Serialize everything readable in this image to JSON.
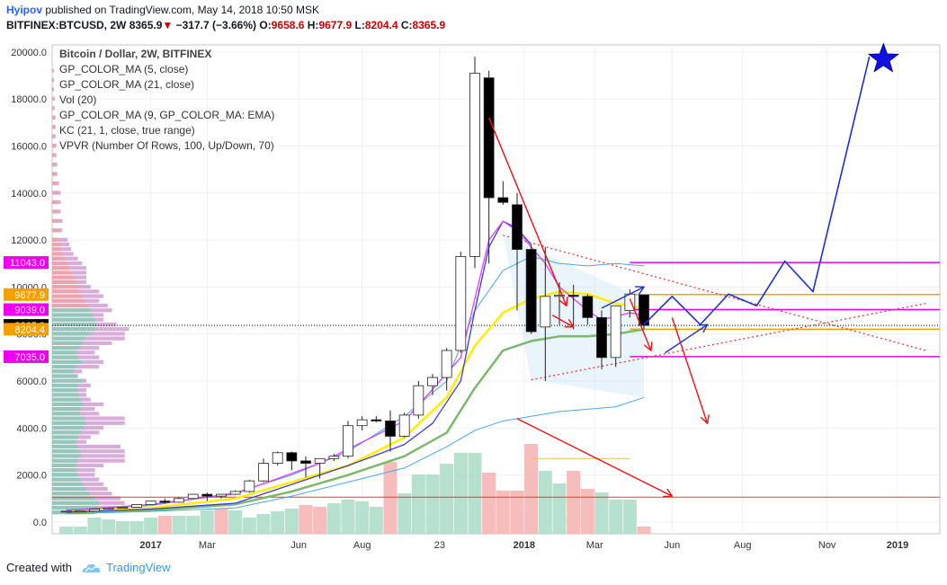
{
  "header": {
    "user": "Hyipov",
    "published_text": "published on TradingView.com, May 14, 2018 10:50 MSK",
    "symbol": "BITFINEX:BTCUSD, 2W",
    "last": "8365.9",
    "change": "−317.7 (−3.66%)",
    "o_label": "O:",
    "o_value": "9658.6",
    "h_label": "H:",
    "h_value": "9677.9",
    "l_label": "L:",
    "l_value": "8204.4",
    "c_label": "C:",
    "c_value": "8365.9"
  },
  "footer": {
    "created_with": "Created with",
    "brand": "TradingView"
  },
  "colors": {
    "up": "#ffffff",
    "down": "#000000",
    "wick": "#222222",
    "ma5": "#e040fb",
    "ma21": "#3d3ddb",
    "ema9": "#ffee00",
    "ma21b": "#7cb96b",
    "kc": "#4aa6e8",
    "vol_up": "#a8dcc5",
    "vol_down": "#f6b0b0",
    "red_arrow": "#ee1111",
    "blue_arrow": "#1c2ed8",
    "magenta": "#ee00ee",
    "orange": "#f5a000"
  },
  "chart_data": {
    "type": "candlestick",
    "title": "Bitcoin / Dollar, 2W, BITFINEX",
    "indicators": [
      "GP_COLOR_MA (5, close)",
      "GP_COLOR_MA (21, close)",
      "Vol (20)",
      "GP_COLOR_MA (9, GP_COLOR_MA: EMA)",
      "KC (21, 1, close, true range)",
      "VPVR (Number Of Rows, 100, Up/Down, 70)"
    ],
    "y_axis": {
      "ticks": [
        "0.0",
        "2000.0",
        "4000.0",
        "6000.0",
        "8000.0",
        "10000.0",
        "12000.0",
        "14000.0",
        "16000.0",
        "18000.0",
        "20000.0"
      ],
      "ylim": [
        -500,
        20300
      ]
    },
    "x_axis": {
      "ticks": [
        {
          "label": "2017",
          "i": 6
        },
        {
          "label": "Mar",
          "i": 10
        },
        {
          "label": "Jun",
          "i": 16.5
        },
        {
          "label": "Aug",
          "i": 21
        },
        {
          "label": "23",
          "i": 26.5
        },
        {
          "label": "2018",
          "i": 32.5
        },
        {
          "label": "Mar",
          "i": 37.5
        },
        {
          "label": "Jun",
          "i": 43
        },
        {
          "label": "Aug",
          "i": 48
        },
        {
          "label": "Nov",
          "i": 54
        },
        {
          "label": "2019",
          "i": 59
        }
      ],
      "xlim": [
        -1,
        62
      ]
    },
    "price_labels": [
      {
        "value": "11043.0",
        "y": 11043,
        "color": "#ee00ee"
      },
      {
        "value": "9677.9",
        "y": 9677.9,
        "color": "#f5a000"
      },
      {
        "value": "9039.0",
        "y": 9039,
        "color": "#ee00ee"
      },
      {
        "value": "8365.9",
        "y": 8365.9,
        "color": "#000000"
      },
      {
        "value": "8204.4",
        "y": 8204.4,
        "color": "#f5a000"
      },
      {
        "value": "7035.0",
        "y": 7035,
        "color": "#ee00ee"
      }
    ],
    "candles": [
      [
        0,
        430,
        460,
        440,
        460
      ],
      [
        1,
        460,
        470,
        450,
        465
      ],
      [
        2,
        465,
        560,
        460,
        550
      ],
      [
        3,
        550,
        620,
        540,
        600
      ],
      [
        4,
        600,
        650,
        590,
        630
      ],
      [
        5,
        630,
        760,
        620,
        740
      ],
      [
        6,
        740,
        900,
        730,
        890
      ],
      [
        7,
        890,
        1000,
        780,
        840
      ],
      [
        8,
        840,
        1050,
        820,
        1000
      ],
      [
        9,
        1000,
        1200,
        980,
        1180
      ],
      [
        10,
        1180,
        1250,
        900,
        1100
      ],
      [
        11,
        1100,
        1200,
        1000,
        1180
      ],
      [
        12,
        1180,
        1350,
        1150,
        1300
      ],
      [
        13,
        1300,
        1800,
        1250,
        1750
      ],
      [
        14,
        1750,
        2700,
        1700,
        2500
      ],
      [
        15,
        2500,
        3000,
        2400,
        2950
      ],
      [
        16,
        2950,
        3000,
        2200,
        2600
      ],
      [
        17,
        2600,
        2800,
        1900,
        2500
      ],
      [
        18,
        2500,
        2700,
        1850,
        2700
      ],
      [
        19,
        2700,
        2900,
        2600,
        2800
      ],
      [
        20,
        2800,
        4300,
        2700,
        4100
      ],
      [
        21,
        4100,
        4500,
        3900,
        4350
      ],
      [
        22,
        4350,
        4500,
        4250,
        4300
      ],
      [
        23,
        4300,
        4750,
        3000,
        3650
      ],
      [
        24,
        3650,
        4650,
        3600,
        4550
      ],
      [
        25,
        4550,
        6000,
        4400,
        5800
      ],
      [
        26,
        5800,
        6300,
        5400,
        6150
      ],
      [
        27,
        6150,
        7400,
        5600,
        7300
      ],
      [
        28,
        7300,
        11500,
        7200,
        11300
      ],
      [
        29,
        11300,
        19800,
        10800,
        19100
      ],
      [
        30,
        18900,
        19200,
        11000,
        13800
      ],
      [
        31,
        13800,
        14500,
        13500,
        13600
      ],
      [
        32,
        13500,
        14000,
        9000,
        11600
      ],
      [
        33,
        11600,
        11800,
        8000,
        8100
      ],
      [
        34,
        8300,
        11700,
        6000,
        9600
      ],
      [
        35,
        9600,
        10200,
        8400,
        9650
      ],
      [
        36,
        9650,
        10100,
        8200,
        9600
      ],
      [
        37,
        9600,
        9700,
        8400,
        8700
      ],
      [
        38,
        8700,
        9000,
        6500,
        7000
      ],
      [
        39,
        7000,
        9200,
        6600,
        9200
      ],
      [
        40,
        9000,
        9900,
        8700,
        9700
      ],
      [
        41,
        9658.6,
        9677.9,
        8204.4,
        8365.9
      ]
    ],
    "ma5": [
      [
        0,
        480
      ],
      [
        6,
        750
      ],
      [
        12,
        1200
      ],
      [
        18,
        2500
      ],
      [
        24,
        4300
      ],
      [
        28,
        7000
      ],
      [
        30,
        12000
      ],
      [
        31,
        12800
      ],
      [
        32,
        12400
      ],
      [
        34,
        11000
      ],
      [
        35,
        10000
      ],
      [
        37,
        9000
      ],
      [
        38,
        8600
      ],
      [
        40,
        8900
      ],
      [
        41,
        8800
      ]
    ],
    "ma21": [
      [
        0,
        420
      ],
      [
        6,
        550
      ],
      [
        12,
        800
      ],
      [
        16,
        1600
      ],
      [
        20,
        2400
      ],
      [
        24,
        3300
      ],
      [
        26,
        4200
      ],
      [
        28,
        6000
      ],
      [
        29,
        9000
      ],
      [
        30,
        11700
      ],
      [
        31,
        12800
      ],
      [
        32,
        12500
      ],
      [
        33,
        11800
      ]
    ],
    "ema9": [
      [
        0,
        440
      ],
      [
        6,
        600
      ],
      [
        12,
        1000
      ],
      [
        16,
        1700
      ],
      [
        20,
        2400
      ],
      [
        24,
        3600
      ],
      [
        27,
        5300
      ],
      [
        29,
        7500
      ],
      [
        31,
        8900
      ],
      [
        33,
        9500
      ],
      [
        35,
        9800
      ],
      [
        37,
        9700
      ],
      [
        39,
        9300
      ],
      [
        41,
        9100
      ]
    ],
    "ma21b": [
      [
        0,
        420
      ],
      [
        6,
        500
      ],
      [
        12,
        750
      ],
      [
        16,
        1300
      ],
      [
        20,
        2000
      ],
      [
        24,
        2800
      ],
      [
        27,
        3800
      ],
      [
        29,
        5700
      ],
      [
        31,
        7300
      ],
      [
        33,
        7700
      ],
      [
        35,
        7900
      ],
      [
        37,
        7900
      ],
      [
        39,
        8000
      ],
      [
        41,
        8200
      ]
    ],
    "kc_upper": [
      [
        0,
        520
      ],
      [
        6,
        700
      ],
      [
        12,
        1250
      ],
      [
        16,
        2000
      ],
      [
        20,
        3000
      ],
      [
        24,
        4500
      ],
      [
        27,
        6000
      ],
      [
        29,
        9000
      ],
      [
        31,
        10700
      ],
      [
        33,
        11300
      ],
      [
        35,
        11000
      ],
      [
        37,
        10900
      ],
      [
        39,
        11000
      ],
      [
        41,
        10900
      ]
    ],
    "kc_lower": [
      [
        0,
        350
      ],
      [
        6,
        450
      ],
      [
        12,
        600
      ],
      [
        16,
        1100
      ],
      [
        20,
        1700
      ],
      [
        24,
        2300
      ],
      [
        27,
        3200
      ],
      [
        29,
        3900
      ],
      [
        31,
        4300
      ],
      [
        33,
        4500
      ],
      [
        35,
        4700
      ],
      [
        37,
        4800
      ],
      [
        39,
        4900
      ],
      [
        41,
        5300
      ]
    ],
    "volume": [
      [
        0,
        0.08,
        1
      ],
      [
        1,
        0.08,
        1
      ],
      [
        2,
        0.18,
        1
      ],
      [
        3,
        0.16,
        1
      ],
      [
        4,
        0.14,
        1
      ],
      [
        5,
        0.14,
        1
      ],
      [
        6,
        0.18,
        1
      ],
      [
        7,
        0.2,
        0
      ],
      [
        8,
        0.2,
        1
      ],
      [
        9,
        0.2,
        1
      ],
      [
        10,
        0.26,
        1
      ],
      [
        11,
        0.28,
        0
      ],
      [
        12,
        0.26,
        1
      ],
      [
        13,
        0.18,
        1
      ],
      [
        14,
        0.22,
        1
      ],
      [
        15,
        0.25,
        1
      ],
      [
        16,
        0.28,
        1
      ],
      [
        17,
        0.32,
        0
      ],
      [
        18,
        0.3,
        0
      ],
      [
        19,
        0.34,
        1
      ],
      [
        20,
        0.38,
        1
      ],
      [
        21,
        0.36,
        1
      ],
      [
        22,
        0.3,
        1
      ],
      [
        23,
        0.8,
        0
      ],
      [
        24,
        0.45,
        1
      ],
      [
        25,
        0.66,
        1
      ],
      [
        26,
        0.66,
        1
      ],
      [
        27,
        0.78,
        1
      ],
      [
        28,
        0.9,
        1
      ],
      [
        29,
        0.9,
        1
      ],
      [
        30,
        0.68,
        0
      ],
      [
        31,
        0.48,
        0
      ],
      [
        32,
        0.48,
        0
      ],
      [
        33,
        1.0,
        0
      ],
      [
        34,
        0.7,
        1
      ],
      [
        35,
        0.56,
        1
      ],
      [
        36,
        0.7,
        0
      ],
      [
        37,
        0.5,
        0
      ],
      [
        38,
        0.46,
        1
      ],
      [
        39,
        0.38,
        1
      ],
      [
        40,
        0.38,
        1
      ],
      [
        41,
        0.08,
        0
      ]
    ],
    "vpvr_rows": [
      [
        6.0,
        0.35,
        0.4
      ],
      [
        6.2,
        0.3,
        0.3
      ],
      [
        6.4,
        0.25,
        0.35
      ],
      [
        6.6,
        0.28,
        0.55
      ],
      [
        6.8,
        0.35,
        0.6
      ],
      [
        7.0,
        0.3,
        0.55
      ],
      [
        7.2,
        0.28,
        0.5
      ],
      [
        7.4,
        0.32,
        0.55
      ],
      [
        7.6,
        0.36,
        0.7
      ],
      [
        7.8,
        0.38,
        0.85
      ],
      [
        8.0,
        0.45,
        0.85
      ],
      [
        8.2,
        0.5,
        0.9
      ],
      [
        8.4,
        0.52,
        0.75
      ],
      [
        8.6,
        0.5,
        0.6
      ],
      [
        8.8,
        0.48,
        0.6
      ],
      [
        9.0,
        0.45,
        0.7
      ],
      [
        9.2,
        0.42,
        0.65
      ],
      [
        9.4,
        0.38,
        0.55
      ],
      [
        9.6,
        0.35,
        0.6
      ],
      [
        9.8,
        0.32,
        0.55
      ],
      [
        10.0,
        0.3,
        0.45
      ],
      [
        10.2,
        0.28,
        0.4
      ],
      [
        10.4,
        0.25,
        0.4
      ],
      [
        10.6,
        0.22,
        0.4
      ],
      [
        10.8,
        0.2,
        0.4
      ],
      [
        11.0,
        0.18,
        0.35
      ],
      [
        11.2,
        0.15,
        0.3
      ],
      [
        11.4,
        0.12,
        0.25
      ],
      [
        11.6,
        0.1,
        0.22
      ],
      [
        11.8,
        0.1,
        0.2
      ],
      [
        12.0,
        0.08,
        0.18
      ],
      [
        12.4,
        0.08,
        0.12
      ],
      [
        12.8,
        0.07,
        0.12
      ],
      [
        13.2,
        0.06,
        0.1
      ],
      [
        13.6,
        0.06,
        0.1
      ],
      [
        14.0,
        0.06,
        0.1
      ],
      [
        14.4,
        0.05,
        0.08
      ],
      [
        14.8,
        0.05,
        0.06
      ],
      [
        15.2,
        0.04,
        0.06
      ],
      [
        15.6,
        0.04,
        0.05
      ],
      [
        16.0,
        0.04,
        0.05
      ],
      [
        16.4,
        0.03,
        0.04
      ],
      [
        16.8,
        0.03,
        0.04
      ],
      [
        17.2,
        0.03,
        0.04
      ],
      [
        17.6,
        0.02,
        0.03
      ],
      [
        18.0,
        0.02,
        0.03
      ],
      [
        18.4,
        0.02,
        0.02
      ],
      [
        18.8,
        0.02,
        0.02
      ],
      [
        19.2,
        0.01,
        0.02
      ],
      [
        5.8,
        0.3,
        0.45
      ],
      [
        5.6,
        0.3,
        0.4
      ],
      [
        5.4,
        0.32,
        0.4
      ],
      [
        5.2,
        0.34,
        0.45
      ],
      [
        5.0,
        0.36,
        0.6
      ],
      [
        4.8,
        0.34,
        0.5
      ],
      [
        4.6,
        0.32,
        0.55
      ],
      [
        4.4,
        0.38,
        0.85
      ],
      [
        4.2,
        0.4,
        0.85
      ],
      [
        4.0,
        0.36,
        0.6
      ],
      [
        3.8,
        0.34,
        0.55
      ],
      [
        3.6,
        0.3,
        0.45
      ],
      [
        3.4,
        0.28,
        0.4
      ],
      [
        3.2,
        0.3,
        0.8
      ],
      [
        3.0,
        0.32,
        0.85
      ],
      [
        2.8,
        0.34,
        0.85
      ],
      [
        2.6,
        0.3,
        0.85
      ],
      [
        2.4,
        0.28,
        0.6
      ],
      [
        2.2,
        0.28,
        0.5
      ],
      [
        2.0,
        0.3,
        0.5
      ],
      [
        1.8,
        0.34,
        0.55
      ],
      [
        1.6,
        0.36,
        0.6
      ],
      [
        1.4,
        0.4,
        0.65
      ],
      [
        1.2,
        0.44,
        0.7
      ],
      [
        1.0,
        0.5,
        0.8
      ],
      [
        0.8,
        0.55,
        0.85
      ],
      [
        0.6,
        0.52,
        0.78
      ],
      [
        0.4,
        0.4,
        0.5
      ]
    ],
    "h_lines": [
      {
        "y": 11043,
        "x0": 40,
        "x1": 62,
        "color": "#ee00ee",
        "w": 1.5
      },
      {
        "y": 9677.9,
        "x0": 40,
        "x1": 62,
        "color": "#f5a000",
        "w": 1.5
      },
      {
        "y": 9039,
        "x0": 40,
        "x1": 62,
        "color": "#ee00ee",
        "w": 1.5
      },
      {
        "y": 8204.4,
        "x0": 40,
        "x1": 62,
        "color": "#f5a000",
        "w": 1.5
      },
      {
        "y": 7035,
        "x0": 40,
        "x1": 62,
        "color": "#ee00ee",
        "w": 1.5
      },
      {
        "y": 1060,
        "x0": -1,
        "x1": 62,
        "color": "#ee3333",
        "w": 1
      },
      {
        "y": 2700,
        "x0": 33,
        "x1": 40,
        "color": "#f5c542",
        "w": 1
      }
    ],
    "red_segments": [
      [
        [
          30,
          17200
        ],
        [
          35.5,
          9200
        ]
      ],
      [
        [
          34.5,
          8800
        ],
        [
          36,
          8300
        ]
      ],
      [
        [
          40,
          9500
        ],
        [
          41.5,
          7300
        ]
      ],
      [
        [
          43,
          8700
        ],
        [
          45.5,
          4200
        ]
      ],
      [
        [
          32,
          4400
        ],
        [
          43,
          1100
        ]
      ]
    ],
    "blue_path": [
      [
        41,
        8400
      ],
      [
        43,
        9600
      ],
      [
        45,
        8400
      ],
      [
        47,
        9700
      ],
      [
        49,
        9200
      ],
      [
        51,
        11100
      ],
      [
        53,
        9800
      ],
      [
        57,
        19800
      ]
    ],
    "blue_segments": [
      [
        [
          38,
          9100
        ],
        [
          41,
          10000
        ]
      ],
      [
        [
          42.5,
          7200
        ],
        [
          45.5,
          8400
        ]
      ]
    ],
    "dotted_lines": [
      [
        [
          31,
          12200
        ],
        [
          61,
          7300
        ]
      ],
      [
        [
          33,
          6050
        ],
        [
          61,
          9300
        ]
      ]
    ],
    "triangle": [
      [
        31,
        12200
      ],
      [
        41,
        9500
      ],
      [
        41,
        5300
      ],
      [
        33,
        6050
      ]
    ],
    "star": {
      "i": 58,
      "y": 19700
    }
  }
}
